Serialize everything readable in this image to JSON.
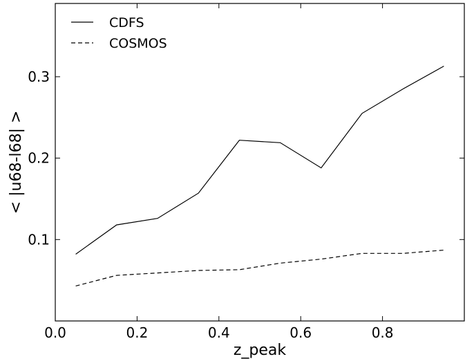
{
  "chart_data": {
    "type": "line",
    "xlabel": "z_peak",
    "ylabel": "< |u68-l68| >",
    "xlim": [
      0.0,
      1.0
    ],
    "ylim": [
      0.0,
      0.39
    ],
    "x_ticks": [
      "0.0",
      "0.2",
      "0.4",
      "0.6",
      "0.8"
    ],
    "y_ticks": [
      "0.1",
      "0.2",
      "0.3"
    ],
    "grid": false,
    "legend_placement": "top-left",
    "series": [
      {
        "name": "CDFS",
        "style": "solid",
        "color": "#000000",
        "x": [
          0.05,
          0.15,
          0.25,
          0.35,
          0.45,
          0.55,
          0.65,
          0.75,
          0.85,
          0.95
        ],
        "y": [
          0.082,
          0.118,
          0.126,
          0.157,
          0.222,
          0.219,
          0.188,
          0.255,
          0.285,
          0.313
        ]
      },
      {
        "name": "COSMOS",
        "style": "dashed",
        "color": "#000000",
        "x": [
          0.05,
          0.15,
          0.25,
          0.35,
          0.45,
          0.55,
          0.65,
          0.75,
          0.85,
          0.95
        ],
        "y": [
          0.043,
          0.056,
          0.059,
          0.062,
          0.063,
          0.071,
          0.076,
          0.083,
          0.083,
          0.087
        ]
      }
    ]
  }
}
